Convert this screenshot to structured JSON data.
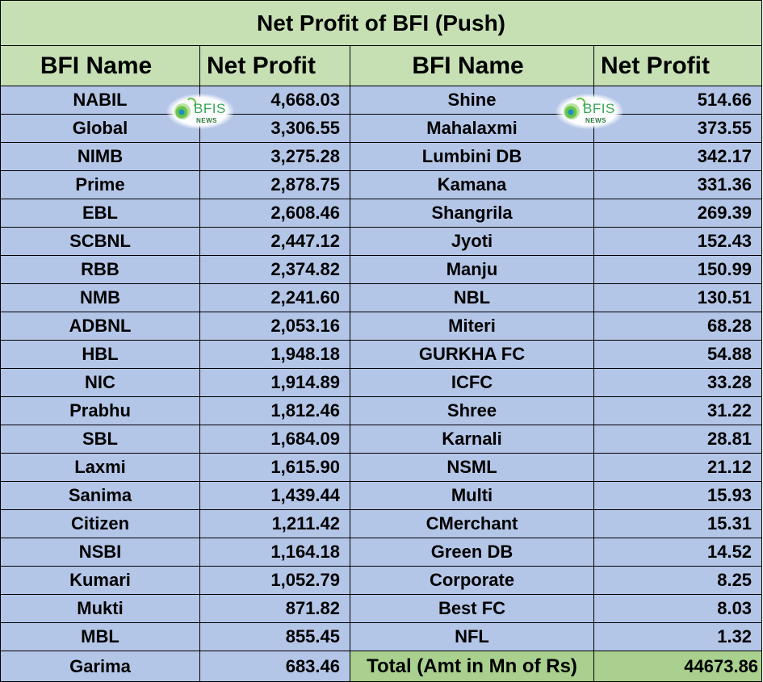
{
  "title": "Net Profit of BFI (Push)",
  "headers": {
    "left_name": "BFI Name",
    "left_profit": "Net Profit",
    "right_name": "BFI Name",
    "right_profit": "Net Profit"
  },
  "left_rows": [
    {
      "name": "NABIL",
      "profit": "4,668.03"
    },
    {
      "name": "Global",
      "profit": "3,306.55"
    },
    {
      "name": "NIMB",
      "profit": "3,275.28"
    },
    {
      "name": "Prime",
      "profit": "2,878.75"
    },
    {
      "name": "EBL",
      "profit": "2,608.46"
    },
    {
      "name": "SCBNL",
      "profit": "2,447.12"
    },
    {
      "name": "RBB",
      "profit": "2,374.82"
    },
    {
      "name": "NMB",
      "profit": "2,241.60"
    },
    {
      "name": "ADBNL",
      "profit": "2,053.16"
    },
    {
      "name": "HBL",
      "profit": "1,948.18"
    },
    {
      "name": "NIC",
      "profit": "1,914.89"
    },
    {
      "name": "Prabhu",
      "profit": "1,812.46"
    },
    {
      "name": "SBL",
      "profit": "1,684.09"
    },
    {
      "name": "Laxmi",
      "profit": "1,615.90"
    },
    {
      "name": "Sanima",
      "profit": "1,439.44"
    },
    {
      "name": "Citizen",
      "profit": "1,211.42"
    },
    {
      "name": "NSBI",
      "profit": "1,164.18"
    },
    {
      "name": "Kumari",
      "profit": "1,052.79"
    },
    {
      "name": "Mukti",
      "profit": "871.82"
    },
    {
      "name": "MBL",
      "profit": "855.45"
    },
    {
      "name": "Garima",
      "profit": "683.46"
    }
  ],
  "right_rows": [
    {
      "name": "Shine",
      "profit": "514.66"
    },
    {
      "name": "Mahalaxmi",
      "profit": "373.55"
    },
    {
      "name": "Lumbini DB",
      "profit": "342.17"
    },
    {
      "name": "Kamana",
      "profit": "331.36"
    },
    {
      "name": "Shangrila",
      "profit": "269.39"
    },
    {
      "name": "Jyoti",
      "profit": "152.43"
    },
    {
      "name": "Manju",
      "profit": "150.99"
    },
    {
      "name": "NBL",
      "profit": "130.51"
    },
    {
      "name": "Miteri",
      "profit": "68.28"
    },
    {
      "name": "GURKHA FC",
      "profit": "54.88"
    },
    {
      "name": "ICFC",
      "profit": "33.28"
    },
    {
      "name": "Shree",
      "profit": "31.22"
    },
    {
      "name": "Karnali",
      "profit": "28.81"
    },
    {
      "name": "NSML",
      "profit": "21.12"
    },
    {
      "name": "Multi",
      "profit": "15.93"
    },
    {
      "name": "CMerchant",
      "profit": "15.31"
    },
    {
      "name": "Green DB",
      "profit": "14.52"
    },
    {
      "name": "Corporate",
      "profit": "8.25"
    },
    {
      "name": "Best FC",
      "profit": "8.03"
    },
    {
      "name": "NFL",
      "profit": "1.32"
    }
  ],
  "total": {
    "label": "Total (Amt in Mn of Rs)",
    "value": "44673.86"
  },
  "watermark": {
    "text": "BFIS",
    "sub": "NEWS",
    "color_text": "#3aa556",
    "color_icon": "#6cc24a"
  },
  "colors": {
    "header_bg": "#c6e0b4",
    "row_bg": "#b4c6e7",
    "total_bg": "#a9d08e"
  }
}
